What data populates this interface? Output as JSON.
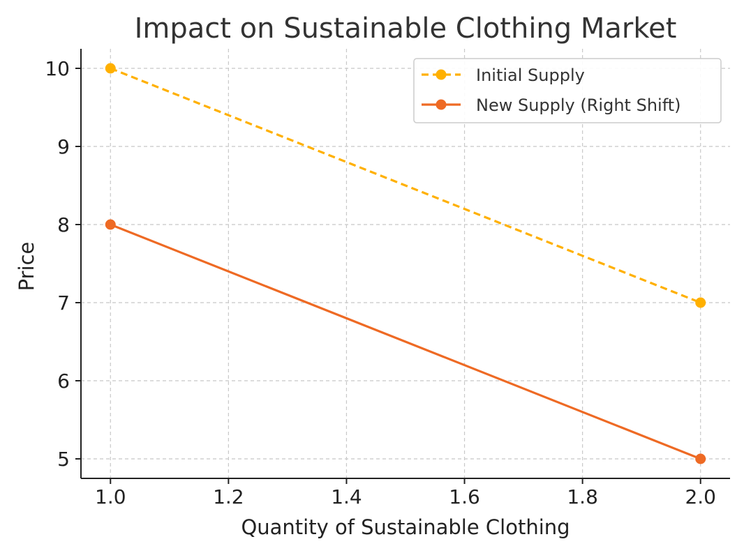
{
  "chart_data": {
    "type": "line",
    "title": "Impact on Sustainable Clothing Market",
    "xlabel": "Quantity of Sustainable Clothing",
    "ylabel": "Price",
    "xlim": [
      0.95,
      2.05
    ],
    "ylim": [
      4.75,
      10.25
    ],
    "xticks": [
      1.0,
      1.2,
      1.4,
      1.6,
      1.8,
      2.0
    ],
    "xtick_labels": [
      "1.0",
      "1.2",
      "1.4",
      "1.6",
      "1.8",
      "2.0"
    ],
    "yticks": [
      5,
      6,
      7,
      8,
      9,
      10
    ],
    "ytick_labels": [
      "5",
      "6",
      "7",
      "8",
      "9",
      "10"
    ],
    "grid": true,
    "grid_style": "dashed",
    "legend_position": "top-right",
    "series": [
      {
        "name": "Initial Supply",
        "x": [
          1.0,
          2.0
        ],
        "y": [
          10,
          7
        ],
        "color": "#FFB000",
        "line_style": "dashed",
        "marker": "circle"
      },
      {
        "name": "New Supply (Right Shift)",
        "x": [
          1.0,
          2.0
        ],
        "y": [
          8,
          5
        ],
        "color": "#EE6A24",
        "line_style": "solid",
        "marker": "circle"
      }
    ]
  }
}
